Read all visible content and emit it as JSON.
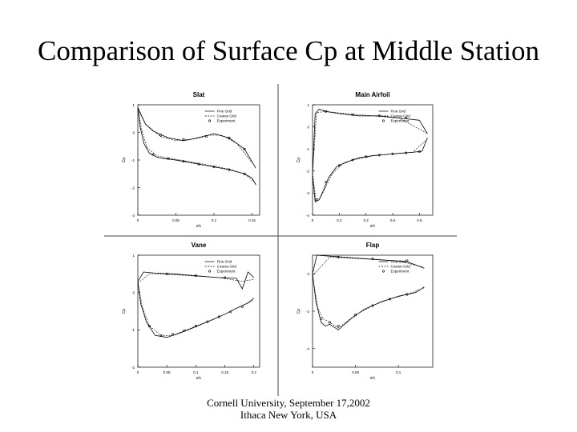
{
  "page": {
    "title": "Comparison of Surface Cp at Middle Station",
    "footer_line1": "Cornell University, September 17,2002",
    "footer_line2": "Ithaca New York, USA"
  },
  "colors": {
    "background": "#ffffff",
    "ink": "#000000",
    "divider": "#666666"
  },
  "chart_data": [
    {
      "type": "line",
      "title": "Slat",
      "xlabel": "x/c",
      "ylabel": "Cp",
      "xlim": [
        0,
        0.16
      ],
      "ylim": [
        1,
        -3
      ],
      "xticks": [
        0,
        0.05,
        0.1,
        0.15
      ],
      "xtick_labels": [
        "0",
        "0.05",
        "0.1",
        "0.15"
      ],
      "yticks": [
        -3,
        -2,
        -1,
        0,
        1
      ],
      "ytick_labels": [
        "-3",
        "-2",
        "-1",
        "0",
        "1"
      ],
      "legend": [
        "Fine Grid",
        "Coarse Grid",
        "Experiment"
      ],
      "series": [
        {
          "name": "Fine Grid (upper)",
          "style": "solid",
          "x": [
            0,
            0.003,
            0.008,
            0.015,
            0.025,
            0.035,
            0.045,
            0.06,
            0.08,
            0.1,
            0.12,
            0.14,
            0.15,
            0.155
          ],
          "y": [
            0.9,
            0.2,
            -0.4,
            -0.75,
            -0.9,
            -0.95,
            -0.98,
            -1.05,
            -1.15,
            -1.25,
            -1.35,
            -1.5,
            -1.65,
            -1.9
          ]
        },
        {
          "name": "Fine Grid (lower)",
          "style": "solid",
          "x": [
            0,
            0.01,
            0.02,
            0.04,
            0.06,
            0.08,
            0.1,
            0.12,
            0.14,
            0.155
          ],
          "y": [
            0.9,
            0.3,
            0.05,
            -0.2,
            -0.3,
            -0.2,
            -0.05,
            -0.2,
            -0.6,
            -1.3
          ]
        },
        {
          "name": "Coarse Grid (upper)",
          "style": "dashed",
          "x": [
            0,
            0.005,
            0.012,
            0.025,
            0.04,
            0.06,
            0.08,
            0.1,
            0.12,
            0.14,
            0.155
          ],
          "y": [
            0.85,
            0.1,
            -0.55,
            -0.85,
            -0.93,
            -1.02,
            -1.12,
            -1.22,
            -1.33,
            -1.5,
            -1.85
          ]
        },
        {
          "name": "Coarse Grid (lower)",
          "style": "dashed",
          "x": [
            0,
            0.01,
            0.03,
            0.05,
            0.07,
            0.09,
            0.11,
            0.13,
            0.15
          ],
          "y": [
            0.85,
            0.3,
            -0.15,
            -0.3,
            -0.25,
            -0.1,
            -0.1,
            -0.4,
            -1.1
          ]
        },
        {
          "name": "Experiment",
          "style": "markers",
          "x": [
            0.02,
            0.04,
            0.06,
            0.08,
            0.1,
            0.12,
            0.14,
            0.03,
            0.06,
            0.09,
            0.12,
            0.14
          ],
          "y": [
            -0.8,
            -0.95,
            -1.05,
            -1.15,
            -1.25,
            -1.35,
            -1.5,
            -0.1,
            -0.25,
            -0.15,
            -0.2,
            -0.6
          ]
        }
      ]
    },
    {
      "type": "line",
      "title": "Main Airfoil",
      "xlabel": "x/c",
      "ylabel": "Cp",
      "xlim": [
        0,
        0.9
      ],
      "ylim": [
        1,
        -4
      ],
      "xticks": [
        0,
        0.2,
        0.4,
        0.6,
        0.8
      ],
      "xtick_labels": [
        "0",
        "0.2",
        "0.4",
        "0.6",
        "0.8"
      ],
      "yticks": [
        -4,
        -3,
        -2,
        -1,
        0,
        1
      ],
      "ytick_labels": [
        "-4",
        "-3",
        "-2",
        "-1",
        "0",
        "1"
      ],
      "legend": [
        "Fine Grid",
        "Coarse Grid",
        "Experiment"
      ],
      "series": [
        {
          "name": "Fine Grid (upper)",
          "style": "solid",
          "x": [
            0,
            0.02,
            0.05,
            0.08,
            0.12,
            0.18,
            0.25,
            0.35,
            0.45,
            0.55,
            0.65,
            0.75,
            0.82,
            0.86
          ],
          "y": [
            -2.2,
            -3.4,
            -3.3,
            -2.9,
            -2.3,
            -1.8,
            -1.6,
            -1.4,
            -1.3,
            -1.25,
            -1.2,
            -1.15,
            -1.1,
            -0.5
          ]
        },
        {
          "name": "Fine Grid (lower)",
          "style": "solid",
          "x": [
            0,
            0.02,
            0.05,
            0.1,
            0.2,
            0.35,
            0.5,
            0.65,
            0.8,
            0.86
          ],
          "y": [
            -2.2,
            0.6,
            0.8,
            0.7,
            0.6,
            0.5,
            0.5,
            0.4,
            0.3,
            -0.3
          ]
        },
        {
          "name": "Coarse Grid (upper)",
          "style": "dashed",
          "x": [
            0,
            0.025,
            0.06,
            0.1,
            0.15,
            0.22,
            0.3,
            0.45,
            0.6,
            0.75,
            0.86
          ],
          "y": [
            -2.1,
            -3.3,
            -3.2,
            -2.7,
            -2.1,
            -1.7,
            -1.5,
            -1.32,
            -1.22,
            -1.15,
            -0.55
          ]
        },
        {
          "name": "Coarse Grid (lower)",
          "style": "dashed",
          "x": [
            0,
            0.03,
            0.1,
            0.25,
            0.45,
            0.65,
            0.86
          ],
          "y": [
            -2.1,
            0.65,
            0.7,
            0.6,
            0.5,
            0.4,
            -0.3
          ]
        },
        {
          "name": "Experiment",
          "style": "markers",
          "x": [
            0.03,
            0.1,
            0.2,
            0.3,
            0.4,
            0.5,
            0.6,
            0.7,
            0.8,
            0.1,
            0.3,
            0.5,
            0.7
          ],
          "y": [
            -3.3,
            -2.5,
            -1.75,
            -1.5,
            -1.35,
            -1.28,
            -1.22,
            -1.18,
            -1.12,
            0.7,
            0.55,
            0.5,
            0.4
          ]
        }
      ]
    },
    {
      "type": "line",
      "title": "Vane",
      "xlabel": "x/c",
      "ylabel": "Cp",
      "xlim": [
        0,
        0.21
      ],
      "ylim": [
        1,
        -2
      ],
      "xticks": [
        0,
        0.05,
        0.1,
        0.15,
        0.2
      ],
      "xtick_labels": [
        "0",
        "0.05",
        "0.1",
        "0.15",
        "0.2"
      ],
      "yticks": [
        -2,
        -1,
        0,
        1
      ],
      "ytick_labels": [
        "-2",
        "-1",
        "0",
        "1"
      ],
      "legend": [
        "Fine Grid",
        "Coarse Grid",
        "Experiment"
      ],
      "series": [
        {
          "name": "Fine Grid (upper)",
          "style": "solid",
          "x": [
            0,
            0.005,
            0.015,
            0.03,
            0.05,
            0.07,
            0.09,
            0.11,
            0.13,
            0.15,
            0.17,
            0.19,
            0.2
          ],
          "y": [
            0.3,
            -0.3,
            -0.8,
            -1.15,
            -1.2,
            -1.1,
            -0.98,
            -0.85,
            -0.72,
            -0.58,
            -0.42,
            -0.28,
            -0.15
          ]
        },
        {
          "name": "Fine Grid (lower)",
          "style": "solid",
          "x": [
            0,
            0.01,
            0.03,
            0.06,
            0.1,
            0.14,
            0.17,
            0.18,
            0.19,
            0.2
          ],
          "y": [
            0.3,
            0.55,
            0.52,
            0.5,
            0.45,
            0.4,
            0.38,
            0.1,
            0.55,
            0.4
          ]
        },
        {
          "name": "Coarse Grid (upper)",
          "style": "dashed",
          "x": [
            0,
            0.008,
            0.02,
            0.04,
            0.06,
            0.09,
            0.12,
            0.15,
            0.18,
            0.2
          ],
          "y": [
            0.25,
            -0.4,
            -0.9,
            -1.15,
            -1.15,
            -0.96,
            -0.78,
            -0.58,
            -0.35,
            -0.2
          ]
        },
        {
          "name": "Coarse Grid (lower)",
          "style": "dashed",
          "x": [
            0,
            0.02,
            0.06,
            0.1,
            0.14,
            0.18,
            0.2
          ],
          "y": [
            0.25,
            0.5,
            0.48,
            0.44,
            0.4,
            0.3,
            0.35
          ]
        },
        {
          "name": "Experiment",
          "style": "markers",
          "x": [
            0.02,
            0.04,
            0.06,
            0.08,
            0.1,
            0.12,
            0.14,
            0.16,
            0.18,
            0.05,
            0.1,
            0.15
          ],
          "y": [
            -0.9,
            -1.15,
            -1.12,
            -1.02,
            -0.9,
            -0.78,
            -0.65,
            -0.52,
            -0.38,
            0.5,
            0.45,
            0.4
          ]
        }
      ]
    },
    {
      "type": "line",
      "title": "Flap",
      "xlabel": "x/c",
      "ylabel": "Cp",
      "xlim": [
        0,
        0.14
      ],
      "ylim": [
        1,
        -5
      ],
      "xticks": [
        0,
        0.05,
        0.1
      ],
      "xtick_labels": [
        "0",
        "0.05",
        "0.1"
      ],
      "yticks": [
        -4,
        -2,
        0
      ],
      "ytick_labels": [
        "-4",
        "-2",
        "0"
      ],
      "legend": [
        "Fine Grid",
        "Coarse Grid",
        "Experiment"
      ],
      "series": [
        {
          "name": "Fine Grid (upper)",
          "style": "solid",
          "x": [
            0,
            0.004,
            0.01,
            0.015,
            0.02,
            0.03,
            0.045,
            0.06,
            0.08,
            0.1,
            0.12,
            0.13
          ],
          "y": [
            0,
            -1.5,
            -2.6,
            -2.8,
            -2.7,
            -3.0,
            -2.4,
            -1.9,
            -1.5,
            -1.2,
            -1.0,
            -0.7
          ]
        },
        {
          "name": "Fine Grid (lower)",
          "style": "solid",
          "x": [
            0,
            0.005,
            0.02,
            0.05,
            0.08,
            0.11,
            0.13
          ],
          "y": [
            0,
            1.0,
            0.95,
            0.85,
            0.75,
            0.65,
            0.3
          ]
        },
        {
          "name": "Coarse Grid (upper)",
          "style": "dashed",
          "x": [
            0,
            0.006,
            0.012,
            0.02,
            0.03,
            0.05,
            0.07,
            0.09,
            0.11,
            0.13
          ],
          "y": [
            -0.1,
            -1.8,
            -2.4,
            -2.6,
            -2.9,
            -2.2,
            -1.7,
            -1.35,
            -1.1,
            -0.75
          ]
        },
        {
          "name": "Coarse Grid (lower)",
          "style": "dashed",
          "x": [
            0,
            0.02,
            0.06,
            0.1,
            0.13
          ],
          "y": [
            -0.1,
            0.9,
            0.8,
            0.7,
            0.35
          ]
        },
        {
          "name": "Experiment",
          "style": "markers",
          "x": [
            0.01,
            0.02,
            0.03,
            0.05,
            0.07,
            0.09,
            0.11,
            0.03,
            0.07,
            0.11
          ],
          "y": [
            -2.4,
            -2.6,
            -2.8,
            -2.2,
            -1.7,
            -1.35,
            -1.1,
            0.9,
            0.8,
            0.7
          ]
        }
      ]
    }
  ]
}
